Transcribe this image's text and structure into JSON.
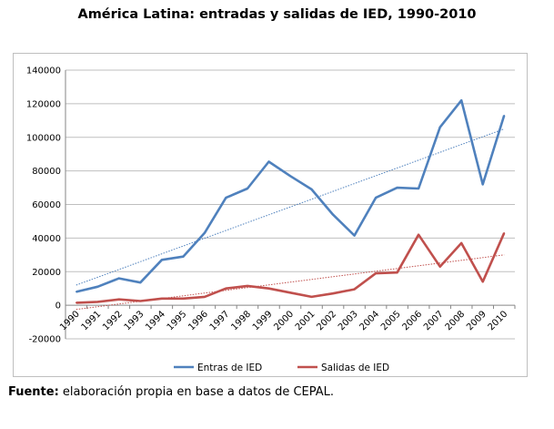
{
  "title": "América Latina: entradas y salidas de IED, 1990-2010",
  "source": {
    "label": "Fuente:",
    "text": " elaboración propia en base a datos de CEPAL."
  },
  "chart_data": {
    "type": "line",
    "title": "América Latina: entradas y salidas de IED, 1990-2010",
    "xlabel": "",
    "ylabel": "",
    "categories": [
      "1990",
      "1991",
      "1992",
      "1993",
      "1994",
      "1995",
      "1996",
      "1997",
      "1998",
      "1999",
      "2000",
      "2001",
      "2002",
      "2003",
      "2004",
      "2005",
      "2006",
      "2007",
      "2008",
      "2009",
      "2010"
    ],
    "ylim": [
      -20000,
      140000
    ],
    "yticks": [
      -20000,
      0,
      20000,
      40000,
      60000,
      80000,
      100000,
      120000,
      140000
    ],
    "grid": true,
    "legend_position": "bottom",
    "series": [
      {
        "name": "Entras de IED",
        "color": "#4f81bd",
        "values": [
          8000,
          11000,
          16000,
          13500,
          27000,
          29000,
          43000,
          64000,
          69500,
          85500,
          77000,
          69000,
          54000,
          41500,
          64000,
          70000,
          69500,
          106000,
          122000,
          72000,
          113000
        ],
        "trend": [
          12000,
          105000
        ]
      },
      {
        "name": "Salidas de IED",
        "color": "#c0504d",
        "values": [
          1500,
          2000,
          3500,
          2500,
          4000,
          4000,
          5000,
          10000,
          11500,
          10000,
          7500,
          5000,
          7000,
          9500,
          19000,
          19500,
          42000,
          23000,
          37000,
          14000,
          43000
        ],
        "trend": [
          -2500,
          30000
        ]
      }
    ]
  }
}
